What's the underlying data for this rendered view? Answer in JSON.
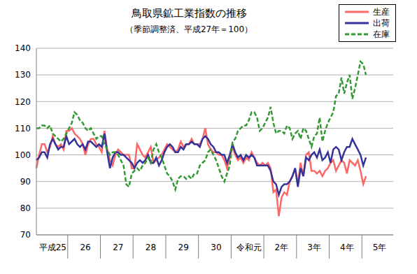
{
  "chart_data": {
    "type": "line",
    "title": "鳥取県鉱工業指数の推移",
    "subtitle": "（季節調整済、平成27年＝100）",
    "legend": "top-right",
    "grid": true,
    "ylim": [
      70,
      140
    ],
    "yticks": [
      70,
      80,
      90,
      100,
      110,
      120,
      130,
      140
    ],
    "categories": [
      null,
      null,
      null,
      null,
      null,
      null,
      "平成25",
      null,
      null,
      null,
      null,
      null,
      null,
      null,
      null,
      null,
      null,
      null,
      "26",
      null,
      null,
      null,
      null,
      null,
      null,
      null,
      null,
      null,
      null,
      null,
      "27",
      null,
      null,
      null,
      null,
      null,
      null,
      null,
      null,
      null,
      null,
      null,
      "28",
      null,
      null,
      null,
      null,
      null,
      null,
      null,
      null,
      null,
      null,
      null,
      "29",
      null,
      null,
      null,
      null,
      null,
      null,
      null,
      null,
      null,
      null,
      null,
      "30",
      null,
      null,
      null,
      null,
      null,
      null,
      null,
      null,
      null,
      null,
      null,
      "令和元",
      null,
      null,
      null,
      null,
      null,
      null,
      null,
      null,
      null,
      null,
      null,
      "2年",
      null,
      null,
      null,
      null,
      null,
      null,
      null,
      null,
      null,
      null,
      null,
      "3年",
      null,
      null,
      null,
      null,
      null,
      null,
      null,
      null,
      null,
      null,
      null,
      "4年",
      null,
      null,
      null,
      null,
      null,
      null,
      null,
      null,
      null,
      null,
      null,
      "5年",
      null,
      null,
      null,
      null,
      null
    ],
    "series": [
      {
        "name": "生産",
        "color": "#ff6666",
        "line_style": "solid",
        "values": [
          95,
          100,
          104,
          104,
          101,
          103,
          107,
          104,
          103,
          104,
          102,
          109,
          109,
          110,
          108,
          107,
          106,
          104,
          100,
          104,
          106,
          106,
          104,
          103,
          101,
          109,
          102,
          98,
          96,
          100,
          102,
          101,
          100,
          100,
          100,
          95,
          95,
          104,
          102,
          100,
          99,
          101,
          103,
          97,
          98,
          99,
          100,
          102,
          104,
          103,
          102,
          101,
          102,
          105,
          103,
          104,
          104,
          106,
          104,
          104,
          104,
          106,
          110,
          104,
          102,
          101,
          101,
          100,
          100,
          98,
          95,
          99,
          103,
          100,
          98,
          99,
          97,
          99,
          98,
          101,
          99,
          97,
          96,
          97,
          96,
          97,
          95,
          86,
          87,
          77,
          84,
          86,
          85,
          90,
          92,
          95,
          89,
          97,
          92,
          100,
          101,
          94,
          94,
          93,
          94,
          92,
          94,
          95,
          97,
          98,
          94,
          96,
          98,
          97,
          93,
          98,
          97,
          96,
          98,
          94,
          89,
          92,
          null,
          null,
          null,
          null,
          null,
          null,
          null,
          null,
          null,
          null
        ]
      },
      {
        "name": "出荷",
        "color": "#333399",
        "line_style": "solid",
        "values": [
          98,
          99,
          101,
          101,
          99,
          104,
          106,
          104,
          102,
          103,
          103,
          107,
          104,
          105,
          106,
          104,
          103,
          104,
          102,
          105,
          105,
          104,
          103,
          104,
          103,
          108,
          101,
          95,
          99,
          101,
          101,
          100,
          100,
          99,
          98,
          97,
          95,
          97,
          98,
          97,
          98,
          100,
          97,
          97,
          99,
          96,
          98,
          101,
          103,
          104,
          103,
          101,
          101,
          103,
          102,
          104,
          104,
          105,
          104,
          104,
          103,
          106,
          107,
          106,
          104,
          103,
          101,
          101,
          100,
          100,
          97,
          100,
          104,
          101,
          99,
          100,
          98,
          100,
          99,
          100,
          99,
          96,
          96,
          96,
          96,
          96,
          94,
          90,
          89,
          85,
          88,
          89,
          89,
          90,
          92,
          95,
          88,
          95,
          92,
          99,
          98,
          100,
          101,
          99,
          102,
          98,
          99,
          101,
          97,
          102,
          103,
          102,
          98,
          101,
          103,
          103,
          106,
          104,
          102,
          100,
          96,
          99,
          null,
          null,
          null,
          null,
          null,
          null,
          null,
          null,
          null,
          null
        ]
      },
      {
        "name": "在庫",
        "color": "#339933",
        "line_style": "dashed",
        "values": [
          110,
          110,
          111,
          111,
          110,
          111,
          108,
          107,
          106,
          105,
          106,
          108,
          110,
          112,
          116,
          115,
          113,
          112,
          110,
          109,
          110,
          108,
          106,
          107,
          107,
          104,
          102,
          100,
          101,
          101,
          100,
          98,
          96,
          89,
          88,
          93,
          94,
          95,
          94,
          96,
          97,
          99,
          97,
          102,
          104,
          101,
          99,
          96,
          93,
          92,
          90,
          87,
          91,
          92,
          92,
          91,
          92,
          91,
          93,
          93,
          96,
          97,
          98,
          101,
          102,
          100,
          98,
          95,
          92,
          90,
          93,
          96,
          105,
          106,
          109,
          110,
          111,
          111,
          113,
          116,
          116,
          114,
          109,
          110,
          112,
          114,
          118,
          112,
          108,
          109,
          109,
          108,
          111,
          110,
          106,
          108,
          109,
          106,
          110,
          109,
          106,
          103,
          107,
          108,
          114,
          105,
          109,
          112,
          114,
          116,
          122,
          123,
          129,
          123,
          127,
          130,
          121,
          125,
          130,
          135,
          134,
          130,
          null,
          null,
          null,
          null,
          null,
          null,
          null,
          null,
          null,
          null
        ]
      }
    ]
  }
}
